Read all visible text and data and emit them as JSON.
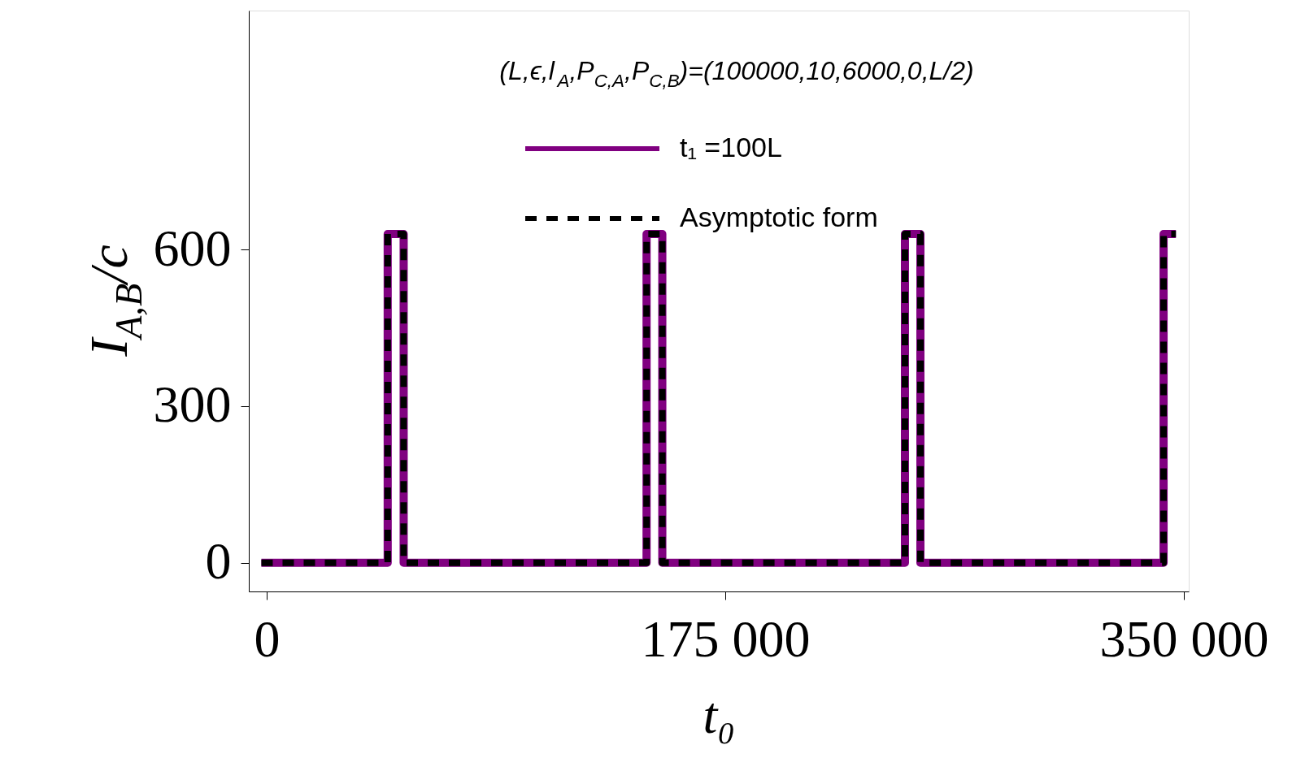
{
  "chart_data": {
    "type": "line",
    "xlabel": "t₀",
    "ylabel": "I$_{A,B}$/c",
    "annotations": [
      "(L,ϵ,l$_{A}$,P$_{C,A}$,P$_{C,B}$)=(100000,10,6000,0,L/2)"
    ],
    "xlim": [
      -6800,
      351900
    ],
    "ylim": [
      -55,
      1058
    ],
    "xticks": [
      0,
      {
        "value": 175000,
        "label": "175 000"
      },
      {
        "value": 350000,
        "label": "350 000"
      }
    ],
    "yticks": [
      0,
      300,
      600
    ],
    "grid": false,
    "legend": "top",
    "series": [
      {
        "name": "t₁ =100L",
        "color": "#800080",
        "line_style": "solid",
        "x": [
          -2000,
          46200,
          46200,
          52300,
          52300,
          145000,
          145000,
          151000,
          151000,
          243600,
          243600,
          249500,
          249500,
          342300,
          342300,
          347000
        ],
        "values": [
          0,
          0,
          630,
          630,
          0,
          0,
          630,
          630,
          0,
          0,
          630,
          630,
          0,
          0,
          630,
          630
        ]
      },
      {
        "name": "Asymptotic form",
        "color": "#000000",
        "line_style": "dashed",
        "x": [
          -2000,
          46200,
          46200,
          52300,
          52300,
          145000,
          145000,
          151000,
          151000,
          243600,
          243600,
          249500,
          249500,
          342300,
          342300,
          347000
        ],
        "values": [
          0,
          0,
          630,
          630,
          0,
          0,
          630,
          630,
          0,
          0,
          630,
          630,
          0,
          0,
          630,
          630
        ]
      }
    ]
  }
}
